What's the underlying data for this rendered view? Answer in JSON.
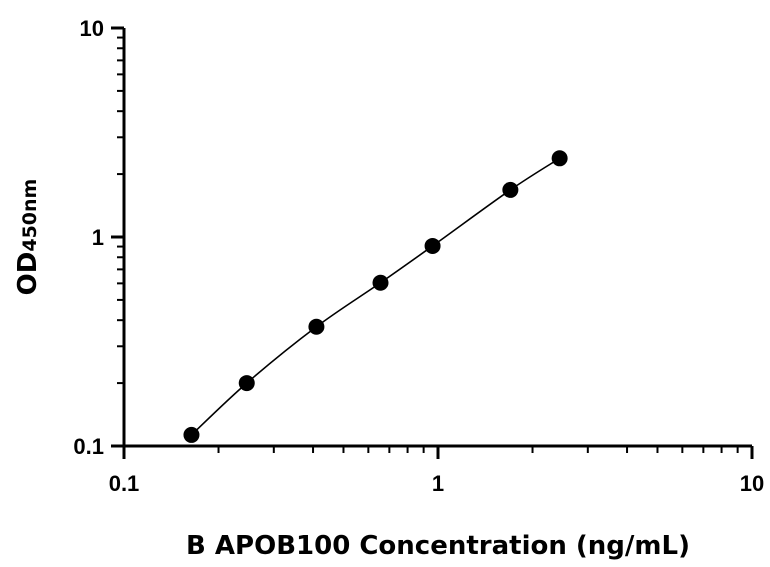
{
  "chart_data": {
    "type": "scatter",
    "xscale": "log",
    "yscale": "log",
    "xlim": [
      0.1,
      10
    ],
    "ylim": [
      0.1,
      10
    ],
    "xticks": [
      "0.1",
      "1",
      "10"
    ],
    "yticks": [
      "0.1",
      "1",
      "10"
    ],
    "xlabel": "B APOB100 Concentration (ng/mL)",
    "ylabel_main": "OD",
    "ylabel_sub": "450nm",
    "grid": false,
    "legend": "none",
    "fit_line": true,
    "series": [
      {
        "x": [
          0.164,
          0.246,
          0.41,
          0.656,
          0.961,
          1.7,
          2.44
        ],
        "y": [
          0.113,
          0.2,
          0.372,
          0.604,
          0.906,
          1.68,
          2.38
        ]
      }
    ],
    "colors": {
      "points": "#000000",
      "line": "#000000",
      "axes": "#000000"
    }
  }
}
